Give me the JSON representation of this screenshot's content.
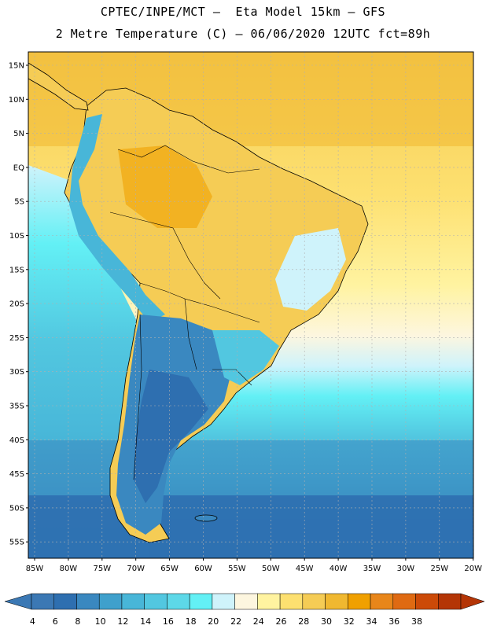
{
  "header": {
    "line1": "CPTEC/INPE/MCT –  Eta Model 15km – GFS",
    "line2": "2 Metre Temperature (C) – 06/06/2020 12UTC fct=89h"
  },
  "map": {
    "lat_ticks": [
      "15N",
      "10N",
      "5N",
      "EQ",
      "5S",
      "10S",
      "15S",
      "20S",
      "25S",
      "30S",
      "35S",
      "40S",
      "45S",
      "50S",
      "55S"
    ],
    "lon_ticks": [
      "85W",
      "80W",
      "75W",
      "70W",
      "65W",
      "60W",
      "55W",
      "50W",
      "45W",
      "40W",
      "35W",
      "30W",
      "25W",
      "20W"
    ],
    "grid_lines": "dotted"
  },
  "colorbar": {
    "labels": [
      "4",
      "6",
      "8",
      "10",
      "12",
      "14",
      "16",
      "18",
      "20",
      "22",
      "24",
      "26",
      "28",
      "30",
      "32",
      "34",
      "36",
      "38"
    ],
    "colors": [
      "#3b78b4",
      "#2e6fb0",
      "#3a88c0",
      "#3fa0cc",
      "#48b6d8",
      "#52c7e0",
      "#5dd8e8",
      "#63f0f5",
      "#cff3fb",
      "#fdf6df",
      "#fff3a0",
      "#fde070",
      "#f5cc55",
      "#f0b830",
      "#f0a000",
      "#e8861a",
      "#df6a12",
      "#cc4a08",
      "#b43506"
    ],
    "under_color": "#3b78b4",
    "over_color": "#b43506"
  }
}
